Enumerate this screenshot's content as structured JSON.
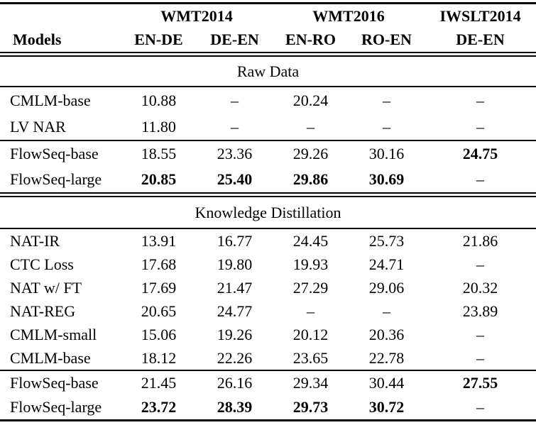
{
  "table": {
    "models_header": "Models",
    "column_groups": [
      {
        "label": "WMT2014",
        "columns": [
          "EN-DE",
          "DE-EN"
        ]
      },
      {
        "label": "WMT2016",
        "columns": [
          "EN-RO",
          "RO-EN"
        ]
      },
      {
        "label": "IWSLT2014",
        "columns": [
          "DE-EN"
        ]
      }
    ],
    "sections": [
      {
        "title": "Raw Data",
        "groups": [
          {
            "rows": [
              {
                "model": "CMLM-base",
                "values": [
                  "10.88",
                  "–",
                  "20.24",
                  "–",
                  "–"
                ],
                "bold_values": []
              },
              {
                "model": "LV NAR",
                "values": [
                  "11.80",
                  "–",
                  "–",
                  "–",
                  "–"
                ],
                "bold_values": []
              }
            ]
          },
          {
            "rows": [
              {
                "model": "FlowSeq-base",
                "values": [
                  "18.55",
                  "23.36",
                  "29.26",
                  "30.16",
                  "24.75"
                ],
                "bold_values": [
                  4
                ]
              },
              {
                "model": "FlowSeq-large",
                "values": [
                  "20.85",
                  "25.40",
                  "29.86",
                  "30.69",
                  "–"
                ],
                "bold_values": [
                  0,
                  1,
                  2,
                  3
                ]
              }
            ]
          }
        ]
      },
      {
        "title": "Knowledge Distillation",
        "groups": [
          {
            "rows": [
              {
                "model": "NAT-IR",
                "values": [
                  "13.91",
                  "16.77",
                  "24.45",
                  "25.73",
                  "21.86"
                ],
                "bold_values": []
              },
              {
                "model": "CTC Loss",
                "values": [
                  "17.68",
                  "19.80",
                  "19.93",
                  "24.71",
                  "–"
                ],
                "bold_values": []
              },
              {
                "model": "NAT w/ FT",
                "values": [
                  "17.69",
                  "21.47",
                  "27.29",
                  "29.06",
                  "20.32"
                ],
                "bold_values": []
              },
              {
                "model": "NAT-REG",
                "values": [
                  "20.65",
                  "24.77",
                  "–",
                  "–",
                  "23.89"
                ],
                "bold_values": []
              },
              {
                "model": "CMLM-small",
                "values": [
                  "15.06",
                  "19.26",
                  "20.12",
                  "20.36",
                  "–"
                ],
                "bold_values": []
              },
              {
                "model": "CMLM-base",
                "values": [
                  "18.12",
                  "22.26",
                  "23.65",
                  "22.78",
                  "–"
                ],
                "bold_values": []
              }
            ]
          },
          {
            "rows": [
              {
                "model": "FlowSeq-base",
                "values": [
                  "21.45",
                  "26.16",
                  "29.34",
                  "30.44",
                  "27.55"
                ],
                "bold_values": [
                  4
                ]
              },
              {
                "model": "FlowSeq-large",
                "values": [
                  "23.72",
                  "28.39",
                  "29.73",
                  "30.72",
                  "–"
                ],
                "bold_values": [
                  0,
                  1,
                  2,
                  3
                ]
              }
            ]
          }
        ]
      }
    ],
    "colors": {
      "text": "#000000",
      "background": "#ffffff",
      "rule": "#000000"
    }
  }
}
